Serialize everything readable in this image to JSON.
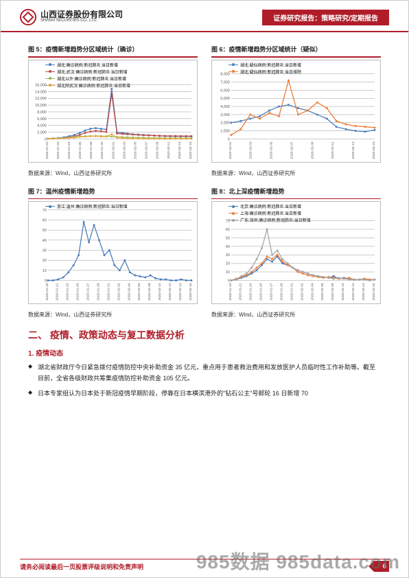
{
  "header": {
    "company_cn": "山西证券股份有限公司",
    "company_en": "SHANXI SECURITIES CO., LTD.",
    "tag": "证券研究报告：策略研究/定期报告"
  },
  "charts": [
    {
      "title": "图 5：疫情新增趋势分区域统计（确诊）",
      "type": "line",
      "legend": [
        {
          "label": "湖北:确诊病例:新冠肺炎:当日新增",
          "color": "#4a7ebb"
        },
        {
          "label": "湖北:武汉:确诊病例:新冠肺炎:当日新增",
          "color": "#be4b48"
        },
        {
          "label": "湖北以外:确诊病例:新冠肺炎:当日新增",
          "color": "#98b954"
        },
        {
          "label": "湖北除武汉:确诊病例:新冠肺炎:当日新增",
          "color": "#e5a946"
        }
      ],
      "ymax": 16000,
      "ystep": 2000,
      "xlabels": [
        "2020-01-20",
        "2020-01-22",
        "2020-01-24",
        "2020-01-26",
        "2020-01-28",
        "2020-01-30",
        "2020-02-01",
        "2020-02-03",
        "2020-02-05",
        "2020-02-07",
        "2020-02-09",
        "2020-02-11",
        "2020-02-13",
        "2020-02-15"
      ],
      "series": [
        [
          100,
          200,
          300,
          500,
          800,
          1200,
          1800,
          2500,
          3000,
          3200,
          3000,
          2800,
          14800,
          2000,
          1800,
          1600,
          1400,
          1300,
          1200,
          1100,
          1000,
          900,
          850,
          800,
          780,
          760,
          750,
          740
        ],
        [
          50,
          100,
          150,
          300,
          500,
          800,
          1200,
          1800,
          2200,
          2400,
          2300,
          2100,
          13400,
          1600,
          1500,
          1400,
          1300,
          1200,
          1100,
          1050,
          1000,
          950,
          900,
          880,
          870,
          860,
          850,
          840
        ],
        [
          50,
          100,
          200,
          300,
          400,
          600,
          700,
          800,
          850,
          900,
          850,
          800,
          700,
          600,
          550,
          500,
          450,
          400,
          350,
          300,
          280,
          260,
          250,
          240,
          230,
          220,
          210,
          200
        ],
        [
          50,
          100,
          150,
          200,
          300,
          400,
          600,
          700,
          800,
          800,
          700,
          700,
          1400,
          400,
          300,
          200,
          150,
          100,
          80,
          70,
          60,
          55,
          50,
          48,
          46,
          45,
          44,
          43
        ]
      ],
      "src": "数据来源：Wind，山西证券研究所"
    },
    {
      "title": "图 6：疫情新增趋势分区域统计（疑似）",
      "type": "line",
      "legend": [
        {
          "label": "湖北:疑似病例:新冠肺炎:当日新增",
          "color": "#4a7ebb"
        },
        {
          "label": "湖北:疑似病例:新冠肺炎:当日排除",
          "color": "#ed7d31"
        }
      ],
      "ymax": 8000,
      "ystep": 1000,
      "xlabels": [
        "2020-02-01",
        "2020-02-03",
        "2020-02-05",
        "2020-02-07",
        "2020-02-09",
        "2020-02-11",
        "2020-02-13",
        "2020-02-15"
      ],
      "series": [
        [
          2000,
          2200,
          2500,
          2800,
          3500,
          4000,
          4200,
          3800,
          3500,
          3000,
          2500,
          1500,
          1200,
          1000,
          900,
          1100
        ],
        [
          500,
          1200,
          3000,
          2500,
          3200,
          2800,
          7200,
          3000,
          3500,
          4500,
          3800,
          2200,
          1800,
          1600,
          1500,
          1400
        ]
      ],
      "src": "数据来源：Wind，山西证券研究所"
    },
    {
      "title": "图 7：温州疫情新增趋势",
      "type": "line",
      "legend": [
        {
          "label": "浙江:温州:确诊病例:新冠肺炎:当日新增",
          "color": "#4a7ebb"
        }
      ],
      "ymax": 70,
      "ystep": 10,
      "xlabels": [
        "2020-01-19",
        "2020-01-21",
        "2020-01-23",
        "2020-01-25",
        "2020-01-27",
        "2020-01-29",
        "2020-01-31",
        "2020-02-02",
        "2020-02-04",
        "2020-02-06",
        "2020-02-08",
        "2020-02-10",
        "2020-02-12",
        "2020-02-14",
        "2020-02-16"
      ],
      "series": [
        [
          0,
          0,
          1,
          3,
          8,
          15,
          25,
          58,
          38,
          55,
          40,
          25,
          30,
          15,
          10,
          20,
          8,
          5,
          4,
          3,
          5,
          2,
          1,
          1,
          0,
          0,
          1,
          0,
          0
        ]
      ],
      "src": "数据来源：Wind，山西证券研究所"
    },
    {
      "title": "图 8：北上深疫情新增趋势",
      "type": "line",
      "legend": [
        {
          "label": "北京:确诊病例:新冠肺炎:当日新增",
          "color": "#4a7ebb"
        },
        {
          "label": "上海:确诊病例:新冠肺炎:当日新增",
          "color": "#ed7d31"
        },
        {
          "label": "广东:深圳:确诊病例:新冠肺炎:当日新增",
          "color": "#a5a5a5"
        }
      ],
      "ymax": 70,
      "ystep": 10,
      "xlabels": [
        "2020-01-19",
        "2020-01-21",
        "2020-01-23",
        "2020-01-25",
        "2020-01-27",
        "2020-01-29",
        "2020-01-31",
        "2020-02-02",
        "2020-02-04",
        "2020-02-06",
        "2020-02-08",
        "2020-02-10",
        "2020-02-12",
        "2020-02-14",
        "2020-02-16"
      ],
      "series": [
        [
          0,
          1,
          3,
          5,
          8,
          12,
          18,
          25,
          22,
          28,
          20,
          18,
          15,
          12,
          10,
          8,
          6,
          5,
          4,
          3,
          5,
          2,
          3,
          2,
          1,
          1,
          2,
          1,
          1
        ],
        [
          0,
          2,
          4,
          6,
          10,
          15,
          20,
          28,
          25,
          30,
          22,
          18,
          15,
          10,
          8,
          6,
          5,
          4,
          3,
          4,
          3,
          2,
          2,
          3,
          1,
          1,
          2,
          1,
          1
        ],
        [
          0,
          1,
          5,
          8,
          15,
          25,
          38,
          60,
          30,
          35,
          25,
          20,
          15,
          12,
          10,
          8,
          6,
          5,
          4,
          3,
          2,
          3,
          2,
          1,
          1,
          1,
          1,
          0,
          1
        ]
      ],
      "src": "数据来源：Wind，山西证券研究所"
    }
  ],
  "section_title": "二、 疫情、政策动态与复工数据分析",
  "sub_title": "1.  疫情动态",
  "bullets": [
    "湖北省财政厅今日紧急拨付疫情防控中央补助资金 35 亿元，重点用于患者救治费用和发放医护人员临时性工作补助等。截至目前，全省各级财政共筹集疫情防控补助资金 105 亿元。",
    "日本专家组认为日本处于新冠疫情早期阶段，停靠在日本横滨港外的\"钻石公主\"号邮轮 16 日新增 70"
  ],
  "footer": {
    "disclaimer": "请务必阅读最后一页股票评级说明和免责声明",
    "page": "6",
    "watermark": "985数据 985data.com"
  },
  "colors": {
    "brand": "#b01d29"
  }
}
